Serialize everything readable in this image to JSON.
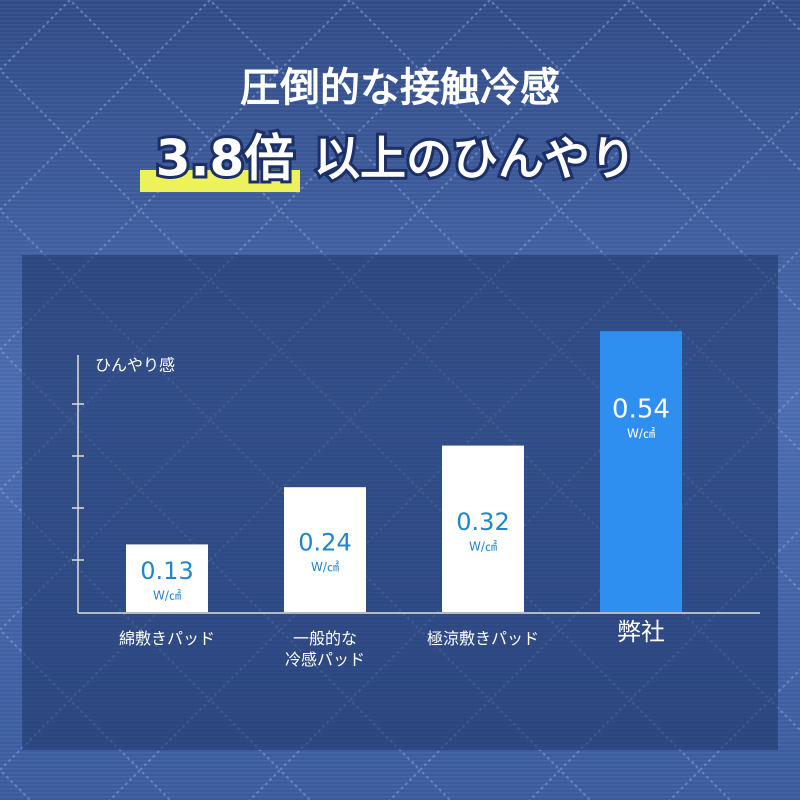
{
  "chart_data": {
    "type": "bar",
    "title": "圧倒的な接触冷感",
    "subtitle_highlight": "3.8倍",
    "subtitle": "以上のひんやり",
    "y_label": "ひんやり感",
    "unit": "W/㎠",
    "categories": [
      "綿敷きパッド",
      "一般的な\n冷感パッド",
      "極涼敷きパッド",
      "弊社"
    ],
    "values": [
      0.13,
      0.24,
      0.32,
      0.54
    ],
    "colors": [
      "#ffffff",
      "#ffffff",
      "#ffffff",
      "#2f8ff0"
    ],
    "label_colors": [
      "#1f86c8",
      "#1f86c8",
      "#1f86c8",
      "#ffffff"
    ],
    "ylim": [
      0,
      0.5
    ],
    "yticks": [
      0.1,
      0.2,
      0.3,
      0.4
    ]
  }
}
